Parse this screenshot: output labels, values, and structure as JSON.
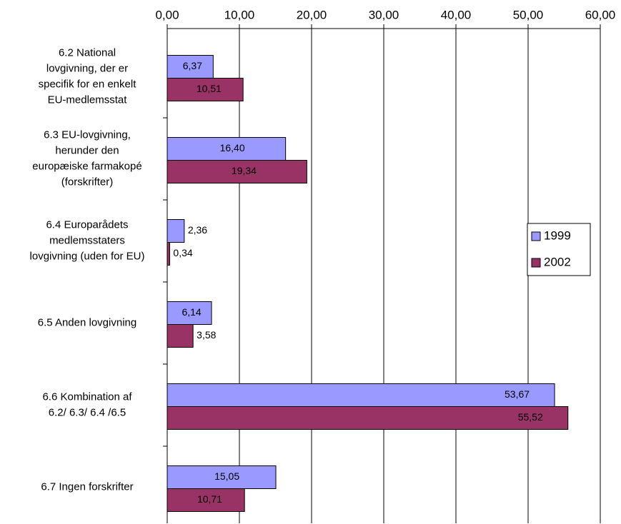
{
  "chart_data": {
    "type": "bar",
    "orientation": "horizontal",
    "categories": [
      [
        "6.2     National",
        "lovgivning, der er",
        "specifik for en enkelt",
        "EU-medlemsstat"
      ],
      [
        "6.3     EU-lovgivning,",
        "herunder den",
        "europæiske farmakopé",
        "(forskrifter)"
      ],
      [
        "6.4     Europarådets",
        "medlemsstaters",
        "lovgivning (uden for EU)"
      ],
      [
        "6.5    Anden lovgivning"
      ],
      [
        "6.6        Kombination af",
        "6.2/ 6.3/ 6.4 /6.5"
      ],
      [
        "6.7       Ingen forskrifter"
      ]
    ],
    "series": [
      {
        "name": "1999",
        "color": "#9999ff",
        "values": [
          6.37,
          16.4,
          2.36,
          6.14,
          53.67,
          15.05
        ],
        "value_labels": [
          "6,37",
          "16,40",
          "2,36",
          "6,14",
          "53,67",
          "15,05"
        ]
      },
      {
        "name": "2002",
        "color": "#993366",
        "values": [
          10.51,
          19.34,
          0.34,
          3.58,
          55.52,
          10.71
        ],
        "value_labels": [
          "10,51",
          "19,34",
          "0,34",
          "3,58",
          "55,52",
          "10,71"
        ]
      }
    ],
    "xlim": [
      0,
      60
    ],
    "xticks": [
      {
        "value": 0,
        "label": "0,00"
      },
      {
        "value": 10,
        "label": "10,00"
      },
      {
        "value": 20,
        "label": "20,00"
      },
      {
        "value": 30,
        "label": "30,00"
      },
      {
        "value": 40,
        "label": "40,00"
      },
      {
        "value": 50,
        "label": "50,00"
      },
      {
        "value": 60,
        "label": "60,00"
      }
    ],
    "grid": true,
    "legend": "right"
  }
}
